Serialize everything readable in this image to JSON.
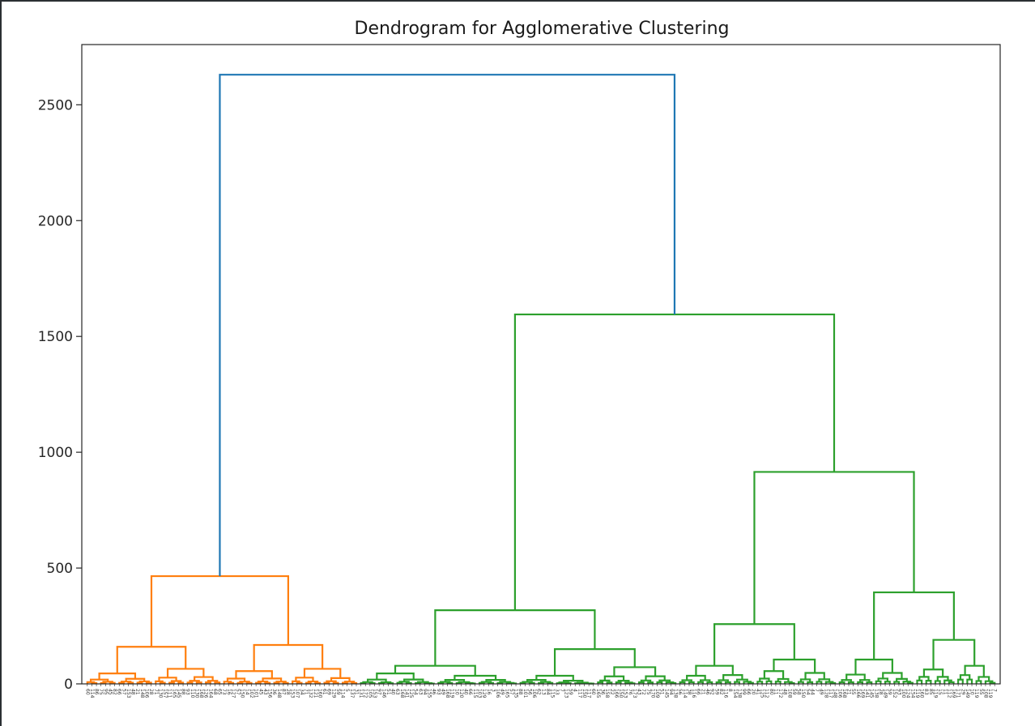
{
  "chart_data": {
    "type": "dendrogram",
    "title": "Dendrogram for Agglomerative Clustering",
    "xlabel": "",
    "ylabel": "",
    "ylim": [
      0,
      2760
    ],
    "y_ticks": [
      0,
      500,
      1000,
      1500,
      2000,
      2500
    ],
    "grid": false,
    "legend": "none",
    "colors": {
      "above_threshold": "#1f77b4",
      "cluster_1": "#ff7f0e",
      "cluster_2": "#2ca02c",
      "axes": "#262626"
    },
    "leaf_count": 200,
    "leaf_labels": [
      "60",
      "114",
      "86",
      "75",
      "95",
      "45",
      "82",
      "66",
      "57",
      "153",
      "48",
      "21",
      "148",
      "106",
      "28",
      "71",
      "130",
      "157",
      "111",
      "165",
      "145",
      "88",
      "93",
      "110",
      "130",
      "168",
      "126",
      "164",
      "68",
      "65",
      "73",
      "16",
      "127",
      "57",
      "150",
      "14",
      "102",
      "101",
      "45",
      "43",
      "156",
      "36",
      "148",
      "87",
      "28",
      "153",
      "107",
      "34",
      "71",
      "132",
      "121",
      "160",
      "61",
      "69",
      "129",
      "59",
      "114",
      "5",
      "137",
      "31",
      "131",
      "172",
      "105",
      "153",
      "97",
      "146",
      "51",
      "40",
      "63",
      "168",
      "141",
      "125",
      "54",
      "63",
      "94",
      "155",
      "46",
      "93",
      "49",
      "168",
      "119",
      "10",
      "120",
      "40",
      "66",
      "115",
      "103",
      "129",
      "16",
      "3",
      "106",
      "49",
      "165",
      "57",
      "135",
      "88",
      "101",
      "56",
      "106",
      "62",
      "13",
      "84",
      "115",
      "33",
      "7",
      "123",
      "59",
      "4",
      "117",
      "150",
      "117",
      "60",
      "165",
      "36",
      "158",
      "22",
      "166",
      "150",
      "153",
      "76",
      "173",
      "43",
      "72",
      "75",
      "170",
      "109",
      "51",
      "145",
      "94",
      "138",
      "56",
      "114",
      "38",
      "116",
      "66",
      "21",
      "46",
      "92",
      "59",
      "82",
      "116",
      "8",
      "154",
      "138",
      "99",
      "66",
      "20",
      "41",
      "125",
      "112",
      "80",
      "11",
      "172",
      "48",
      "108",
      "59",
      "58",
      "150",
      "54",
      "44",
      "7",
      "49",
      "128",
      "117",
      "148",
      "106",
      "168",
      "21",
      "55",
      "166",
      "169",
      "141",
      "145",
      "138",
      "28",
      "149",
      "59",
      "152",
      "93",
      "100",
      "124",
      "154",
      "119",
      "160",
      "83",
      "85",
      "119",
      "15",
      "11",
      "112",
      "169",
      "171",
      "29",
      "149",
      "10",
      "119",
      "55",
      "108",
      "119",
      "7"
    ],
    "top_merge": 2630,
    "clusters": [
      {
        "color": "cluster_1",
        "root_height": 465,
        "leaf_range": [
          0,
          60
        ],
        "subclusters": [
          {
            "height": 160,
            "children": [
              {
                "height": 45
              },
              {
                "height": 65
              }
            ]
          },
          {
            "height": 168,
            "children": [
              {
                "height": 55
              },
              {
                "height": 65
              }
            ]
          }
        ]
      },
      {
        "color": "cluster_2",
        "root_height": 1595,
        "leaf_range": [
          60,
          200
        ],
        "subclusters": [
          {
            "height": 318,
            "children": [
              {
                "height": 78,
                "children": [
                  {
                    "height": 45
                  }
                ]
              },
              {
                "height": 150,
                "children": [
                  {
                    "height": 35
                  },
                  {
                    "height": 72
                  }
                ]
              }
            ]
          },
          {
            "height": 915,
            "children": [
              {
                "height": 258,
                "children": [
                  {
                    "height": 78
                  },
                  {
                    "height": 105,
                    "children": [
                      {
                        "height": 55
                      }
                    ]
                  }
                ]
              },
              {
                "height": 395,
                "children": [
                  {
                    "height": 105,
                    "children": [
                      {
                        "height": 40
                      }
                    ]
                  },
                  {
                    "height": 190,
                    "children": [
                      {
                        "height": 62
                      },
                      {
                        "height": 78
                      }
                    ]
                  }
                ]
              }
            ]
          }
        ]
      }
    ]
  }
}
